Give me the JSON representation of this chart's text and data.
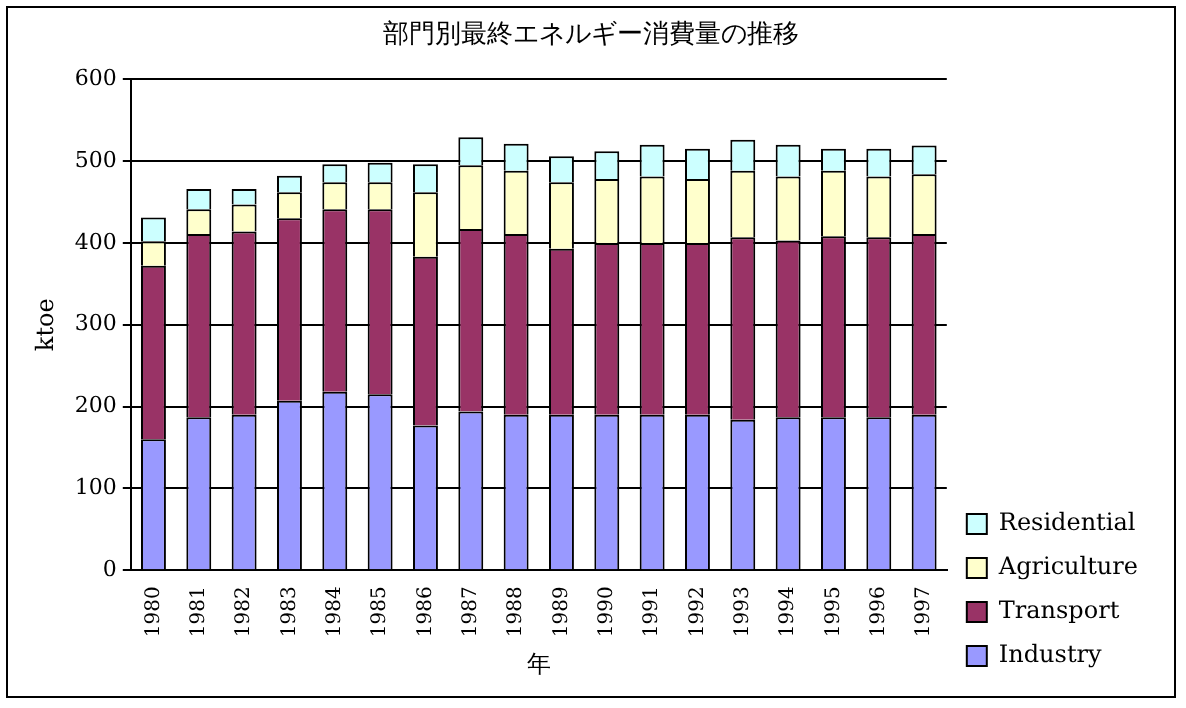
{
  "chart_data": {
    "type": "bar",
    "stacked": true,
    "title": "部門別最終エネルギー消費量の推移",
    "xlabel": "年",
    "ylabel": "ktoe",
    "categories": [
      "1980",
      "1981",
      "1982",
      "1983",
      "1984",
      "1985",
      "1986",
      "1987",
      "1988",
      "1989",
      "1990",
      "1991",
      "1992",
      "1993",
      "1994",
      "1995",
      "1996",
      "1997"
    ],
    "series": [
      {
        "name": "Industry",
        "color": "#9999ff",
        "values": [
          160,
          187,
          190,
          207,
          218,
          215,
          177,
          194,
          190,
          190,
          190,
          190,
          190,
          184,
          187,
          187,
          187,
          190
        ]
      },
      {
        "name": "Transport",
        "color": "#993366",
        "values": [
          212,
          224,
          224,
          223,
          223,
          226,
          206,
          223,
          221,
          203,
          210,
          210,
          210,
          223,
          216,
          221,
          220,
          221
        ]
      },
      {
        "name": "Agriculture",
        "color": "#ffffcc",
        "values": [
          30,
          30,
          33,
          32,
          33,
          33,
          79,
          78,
          77,
          81,
          78,
          81,
          78,
          81,
          78,
          80,
          74,
          73
        ]
      },
      {
        "name": "Residential",
        "color": "#ccffff",
        "values": [
          29,
          25,
          19,
          20,
          22,
          24,
          34,
          34,
          33,
          32,
          34,
          39,
          37,
          38,
          39,
          27,
          34,
          35
        ]
      }
    ],
    "ylim": [
      0,
      600
    ],
    "yticks": [
      0,
      100,
      200,
      300,
      400,
      500,
      600
    ],
    "grid": "y",
    "legend": "right"
  }
}
